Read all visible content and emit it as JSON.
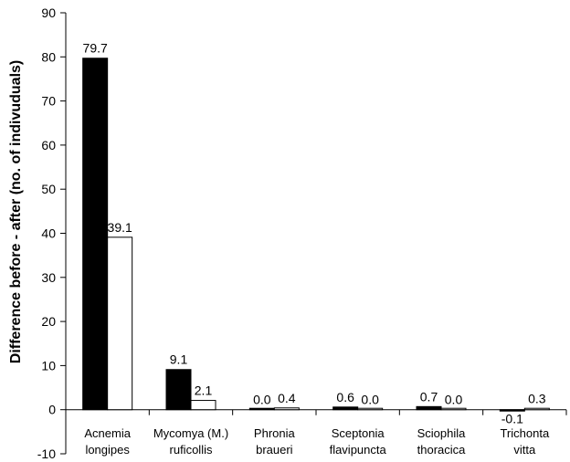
{
  "chart_data": {
    "type": "bar",
    "ylabel": "Difference before - after (no. of indivuduals)",
    "ylim": [
      -10,
      90
    ],
    "yticks": [
      -10,
      0,
      10,
      20,
      30,
      40,
      50,
      60,
      70,
      80,
      90
    ],
    "grid": false,
    "categories": [
      [
        "Acnemia",
        "longipes"
      ],
      [
        "Mycomya (M.)",
        "ruficollis"
      ],
      [
        "Phronia",
        "braueri"
      ],
      [
        "Sceptonia",
        "flavipuncta"
      ],
      [
        "Sciophila",
        "thoracica"
      ],
      [
        "Trichonta",
        "vitta"
      ]
    ],
    "series": [
      {
        "color": "#000000",
        "values": [
          79.7,
          9.1,
          0.0,
          0.6,
          0.7,
          -0.1
        ],
        "labels": [
          "79.7",
          "9.1",
          "0.0",
          "0.6",
          "0.7",
          "-0.1"
        ]
      },
      {
        "color": "#ffffff",
        "values": [
          39.1,
          2.1,
          0.4,
          0.0,
          0.0,
          0.3
        ],
        "labels": [
          "39.1",
          "2.1",
          "0.4",
          "0.0",
          "0.0",
          "0.3"
        ]
      }
    ]
  }
}
